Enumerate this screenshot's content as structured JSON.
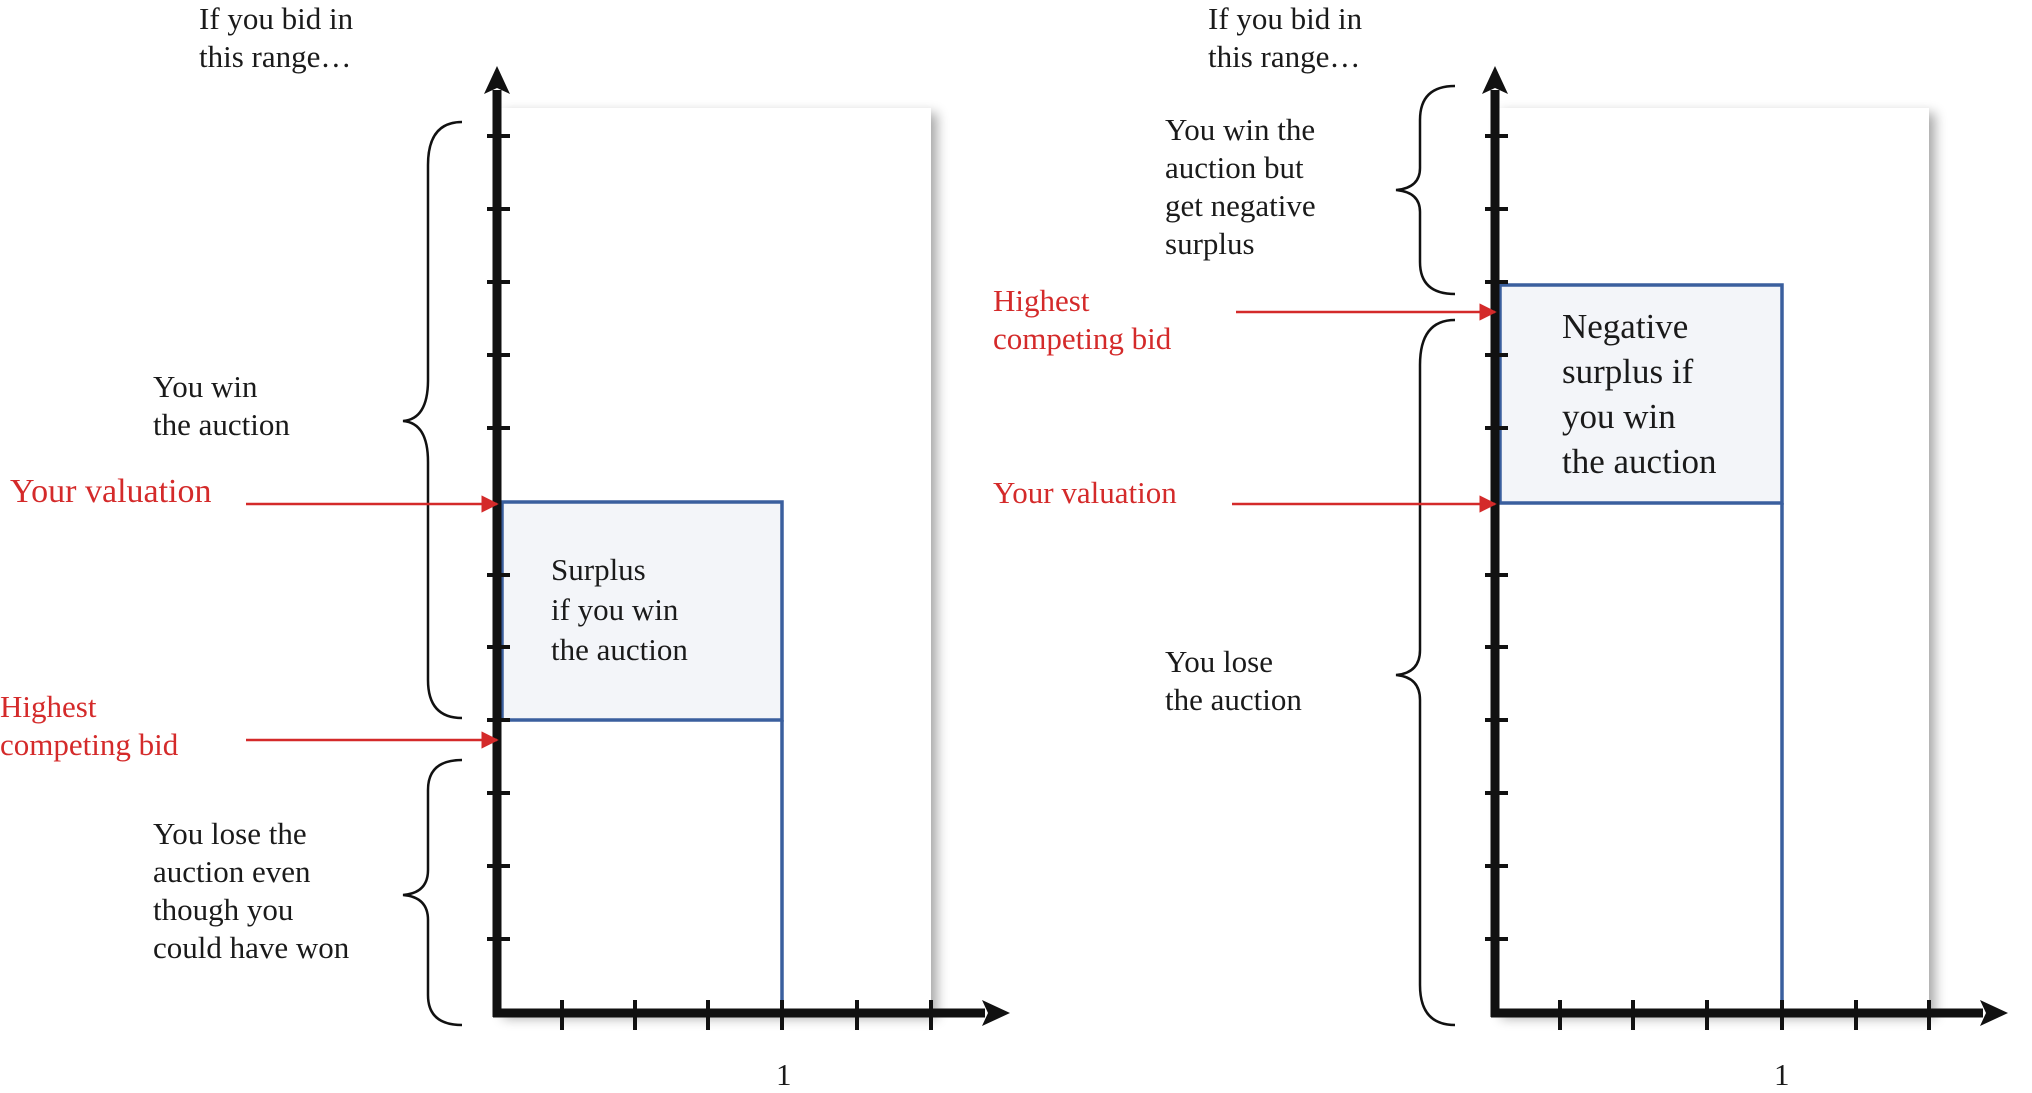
{
  "left_panel": {
    "range_header": "If you bid in\nthis range…",
    "win_label": "You win\nthe auction",
    "your_valuation": "Your valuation",
    "highest_bid": "Highest\ncompeting bid",
    "box_label": "Surplus\nif you win\nthe auction",
    "lose_label": "You lose the\nauction even\nthough you\ncould have won",
    "x_tick_label": "1"
  },
  "right_panel": {
    "range_header": "If you bid in\nthis range…",
    "win_label": "You win the\nauction but\nget negative\nsurplus",
    "highest_bid": "Highest\ncompeting bid",
    "your_valuation": "Your valuation",
    "box_label": "Negative\nsurplus if\nyou win\nthe auction",
    "lose_label": "You lose\nthe auction",
    "x_tick_label": "1"
  },
  "colors": {
    "axis": "#111111",
    "annotation_red": "#d42a2a",
    "box_border": "#3a5f9e",
    "box_fill": "#f3f5f9",
    "panel_shadow": "#bbbbbb"
  }
}
